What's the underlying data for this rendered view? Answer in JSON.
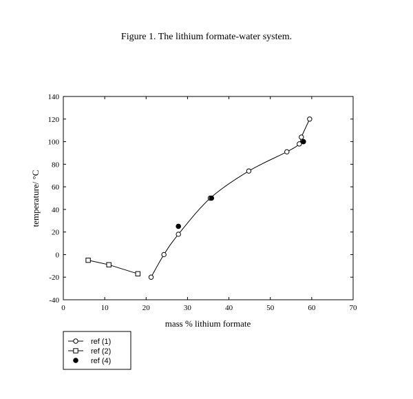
{
  "figure_caption": "Figure 1. The lithium formate-water system.",
  "chart_data": {
    "type": "scatter",
    "title": "",
    "xlabel": "mass % lithium formate",
    "ylabel": "temperature/ °C",
    "xlim": [
      0,
      70
    ],
    "ylim": [
      -40,
      140
    ],
    "x_ticks": [
      0,
      10,
      20,
      30,
      40,
      50,
      60,
      70
    ],
    "y_ticks": [
      -40,
      -20,
      0,
      20,
      40,
      60,
      80,
      100,
      120,
      140
    ],
    "grid": false,
    "legend_position": "bottom-left, below the plot",
    "series": [
      {
        "name": "ref (1)",
        "marker": "open-circle",
        "line": "smooth",
        "color": "#000000",
        "points": [
          {
            "x": 21.2,
            "y": -20
          },
          {
            "x": 24.3,
            "y": 0
          },
          {
            "x": 27.8,
            "y": 18
          },
          {
            "x": 35.5,
            "y": 50
          },
          {
            "x": 44.8,
            "y": 74
          },
          {
            "x": 54.0,
            "y": 91
          },
          {
            "x": 57.0,
            "y": 98
          },
          {
            "x": 57.5,
            "y": 104
          },
          {
            "x": 59.5,
            "y": 120
          }
        ]
      },
      {
        "name": "ref (2)",
        "marker": "open-square",
        "line": "straight",
        "color": "#000000",
        "points": [
          {
            "x": 6.0,
            "y": -5
          },
          {
            "x": 11.0,
            "y": -9
          },
          {
            "x": 18.0,
            "y": -17
          }
        ]
      },
      {
        "name": "ref (4)",
        "marker": "filled-circle",
        "line": "none",
        "color": "#000000",
        "points": [
          {
            "x": 27.8,
            "y": 25
          },
          {
            "x": 35.8,
            "y": 50
          },
          {
            "x": 58.0,
            "y": 100
          }
        ]
      }
    ]
  }
}
